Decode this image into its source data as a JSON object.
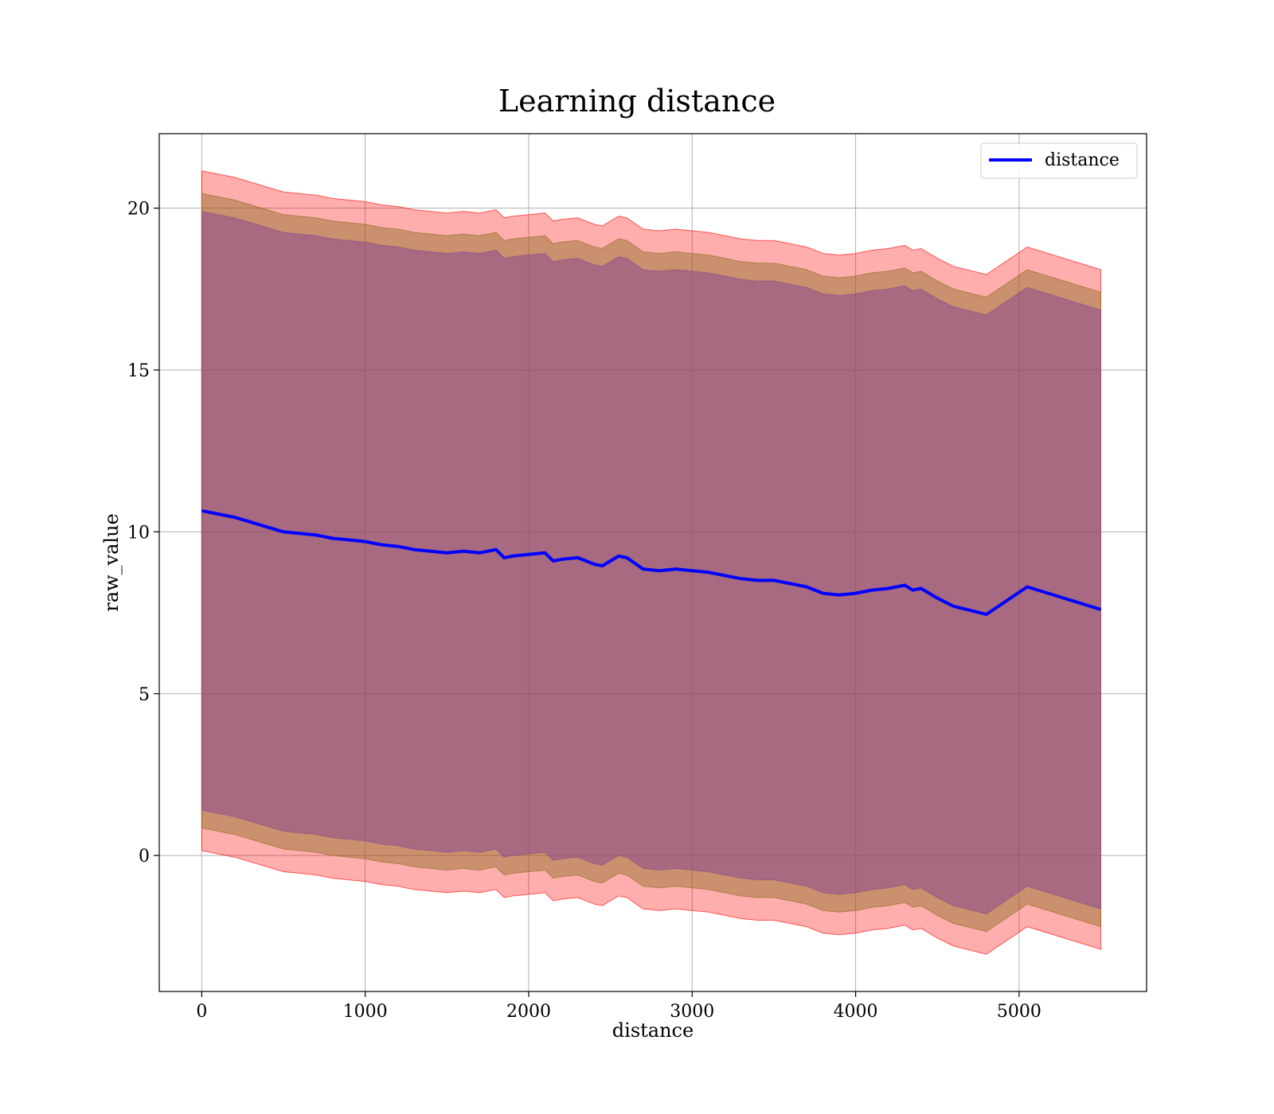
{
  "chart_data": {
    "type": "line",
    "title": "Learning distance",
    "xlabel": "distance",
    "ylabel": "raw_value",
    "xlim": [
      -260,
      5780
    ],
    "ylim": [
      -4.2,
      22.3
    ],
    "x_ticks": [
      0,
      1000,
      2000,
      3000,
      4000,
      5000
    ],
    "y_ticks": [
      0,
      5,
      10,
      15,
      20
    ],
    "grid": true,
    "legend": {
      "position": "top-right",
      "entries": [
        "distance"
      ]
    },
    "colors": {
      "line": "#0000ff",
      "band_outer": "#ff0000",
      "band_middle": "#8b6c1e",
      "band_inner": "#8b4a8f",
      "grid": "#b0b0b0"
    },
    "series": [
      {
        "name": "distance",
        "x": [
          0,
          100,
          200,
          300,
          400,
          500,
          600,
          700,
          800,
          900,
          1000,
          1100,
          1200,
          1300,
          1400,
          1500,
          1600,
          1700,
          1800,
          1850,
          1900,
          2000,
          2100,
          2150,
          2200,
          2300,
          2400,
          2450,
          2500,
          2550,
          2600,
          2700,
          2800,
          2900,
          3000,
          3100,
          3200,
          3300,
          3400,
          3500,
          3600,
          3700,
          3800,
          3900,
          4000,
          4100,
          4200,
          4300,
          4350,
          4400,
          4500,
          4600,
          4800,
          5050,
          5500
        ],
        "y": [
          10.65,
          10.55,
          10.45,
          10.3,
          10.15,
          10.0,
          9.95,
          9.9,
          9.8,
          9.75,
          9.7,
          9.6,
          9.55,
          9.45,
          9.4,
          9.35,
          9.4,
          9.35,
          9.45,
          9.2,
          9.25,
          9.3,
          9.35,
          9.1,
          9.15,
          9.2,
          9.0,
          8.95,
          9.1,
          9.25,
          9.2,
          8.85,
          8.8,
          8.85,
          8.8,
          8.75,
          8.65,
          8.55,
          8.5,
          8.5,
          8.4,
          8.3,
          8.1,
          8.05,
          8.1,
          8.2,
          8.25,
          8.35,
          8.2,
          8.25,
          7.95,
          7.7,
          7.45,
          8.3,
          7.6
        ]
      }
    ],
    "bands": [
      {
        "name": "outer",
        "half_width": 10.5
      },
      {
        "name": "middle",
        "half_width": 9.8
      },
      {
        "name": "inner",
        "half_width": 9.25
      }
    ]
  }
}
